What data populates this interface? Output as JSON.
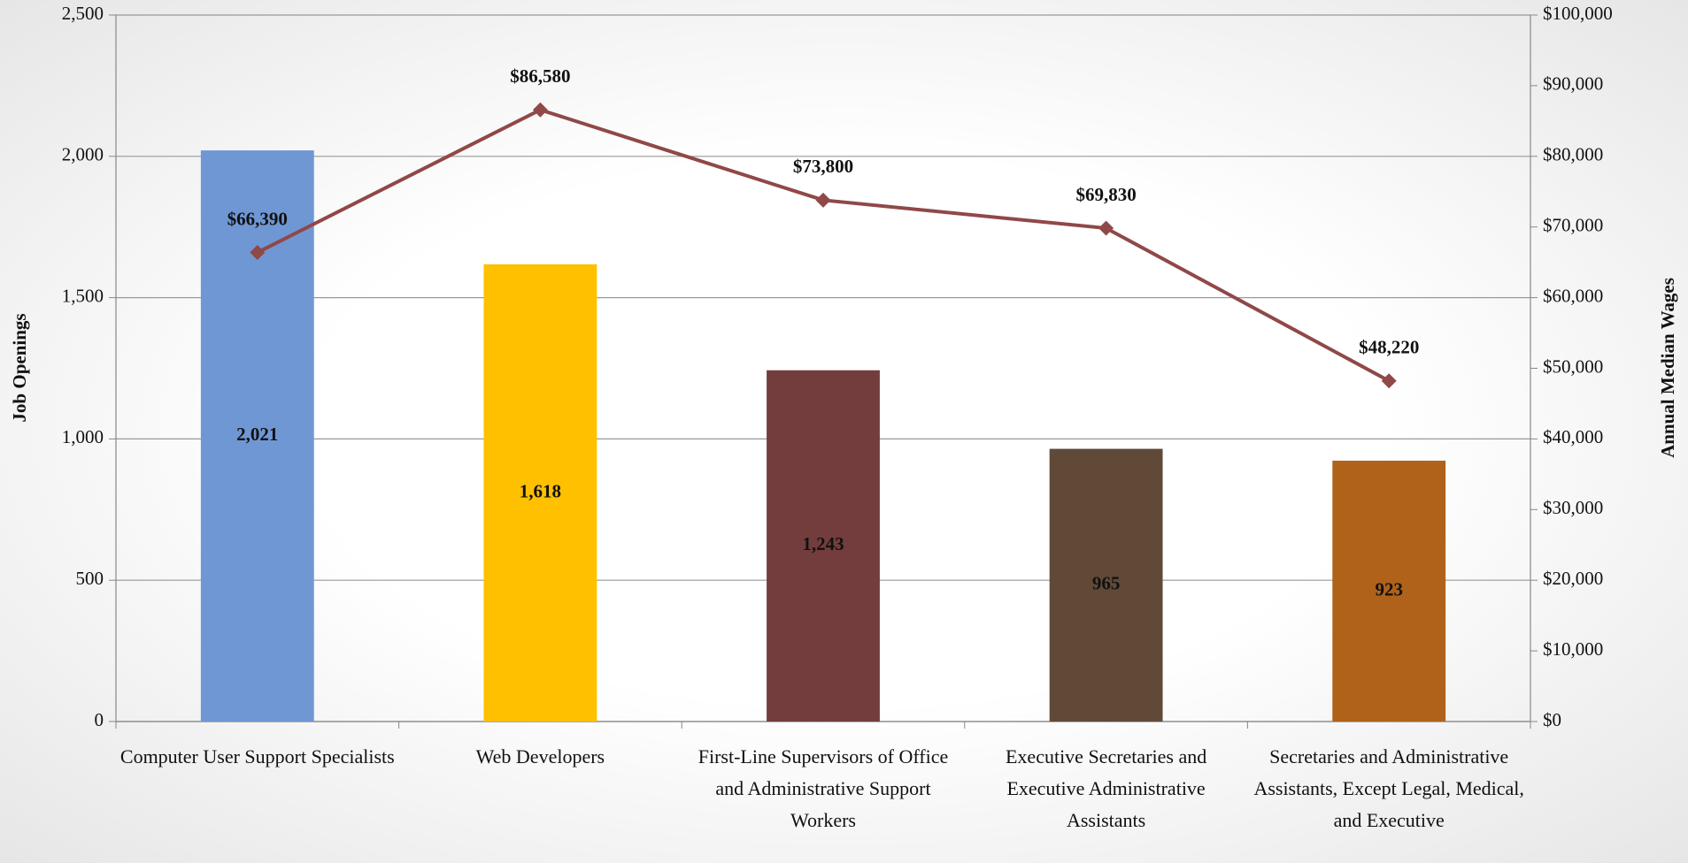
{
  "chart_data": {
    "type": "bar",
    "categories": [
      "Computer User Support Specialists",
      "Web Developers",
      "First-Line Supervisors of Office and Administrative Support Workers",
      "Executive Secretaries and Executive Administrative Assistants",
      "Secretaries and Administrative Assistants, Except Legal, Medical, and Executive"
    ],
    "series": [
      {
        "type": "bar",
        "colors": [
          "#6f97d4",
          "#ffc000",
          "#743d3d",
          "#604a37",
          "#b0621a"
        ],
        "values": [
          2021,
          1618,
          1243,
          965,
          923
        ],
        "value_labels": [
          "2,021",
          "1,618",
          "1,243",
          "965",
          "923"
        ]
      },
      {
        "type": "line",
        "axis": "y2",
        "color": "#904848",
        "values": [
          66390,
          86580,
          73800,
          69830,
          48220
        ],
        "value_labels": [
          "$66,390",
          "$86,580",
          "$73,800",
          "$69,830",
          "$48,220"
        ]
      }
    ],
    "ylabel": "Job Openings",
    "y2label": "Annual Median Wages",
    "ylim": [
      0,
      2500
    ],
    "yticks": [
      0,
      500,
      {
        "value": 1000,
        "label": "1,000"
      },
      {
        "value": 1500,
        "label": "1,500"
      },
      {
        "value": 2000,
        "label": "2,000"
      },
      {
        "value": 2500,
        "label": "2,500"
      }
    ],
    "y2lim": [
      0,
      100000
    ],
    "y2ticks": [
      {
        "value": 0,
        "label": "$0"
      },
      {
        "value": 10000,
        "label": "$10,000"
      },
      {
        "value": 20000,
        "label": "$20,000"
      },
      {
        "value": 30000,
        "label": "$30,000"
      },
      {
        "value": 40000,
        "label": "$40,000"
      },
      {
        "value": 50000,
        "label": "$50,000"
      },
      {
        "value": 60000,
        "label": "$60,000"
      },
      {
        "value": 70000,
        "label": "$70,000"
      },
      {
        "value": 80000,
        "label": "$80,000"
      },
      {
        "value": 90000,
        "label": "$90,000"
      },
      {
        "value": 100000,
        "label": "$100,000"
      }
    ],
    "grid": true
  }
}
